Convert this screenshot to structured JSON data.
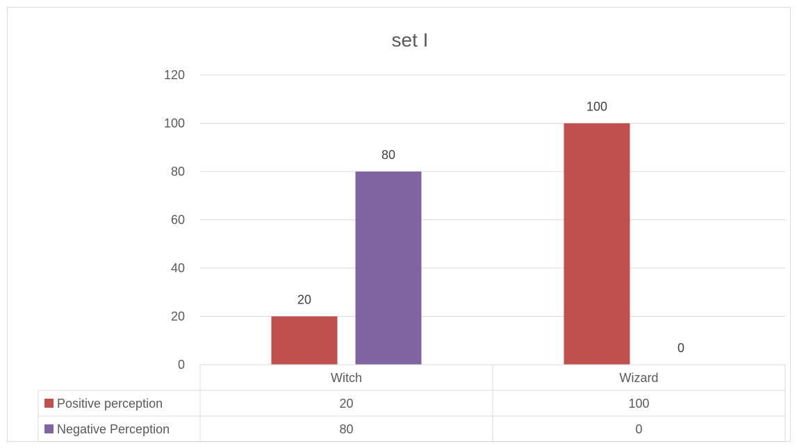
{
  "chart_data": {
    "type": "bar",
    "title": "set I",
    "categories": [
      "Witch",
      "Wizard"
    ],
    "series": [
      {
        "name": "Positive perception",
        "values": [
          20,
          100
        ],
        "color": "#c0504d"
      },
      {
        "name": "Negative Perception",
        "values": [
          80,
          0
        ],
        "color": "#8064a2"
      }
    ],
    "ylim": [
      0,
      120
    ],
    "yticks": [
      0,
      20,
      40,
      60,
      80,
      100,
      120
    ],
    "grid": true,
    "legend": "data table"
  }
}
